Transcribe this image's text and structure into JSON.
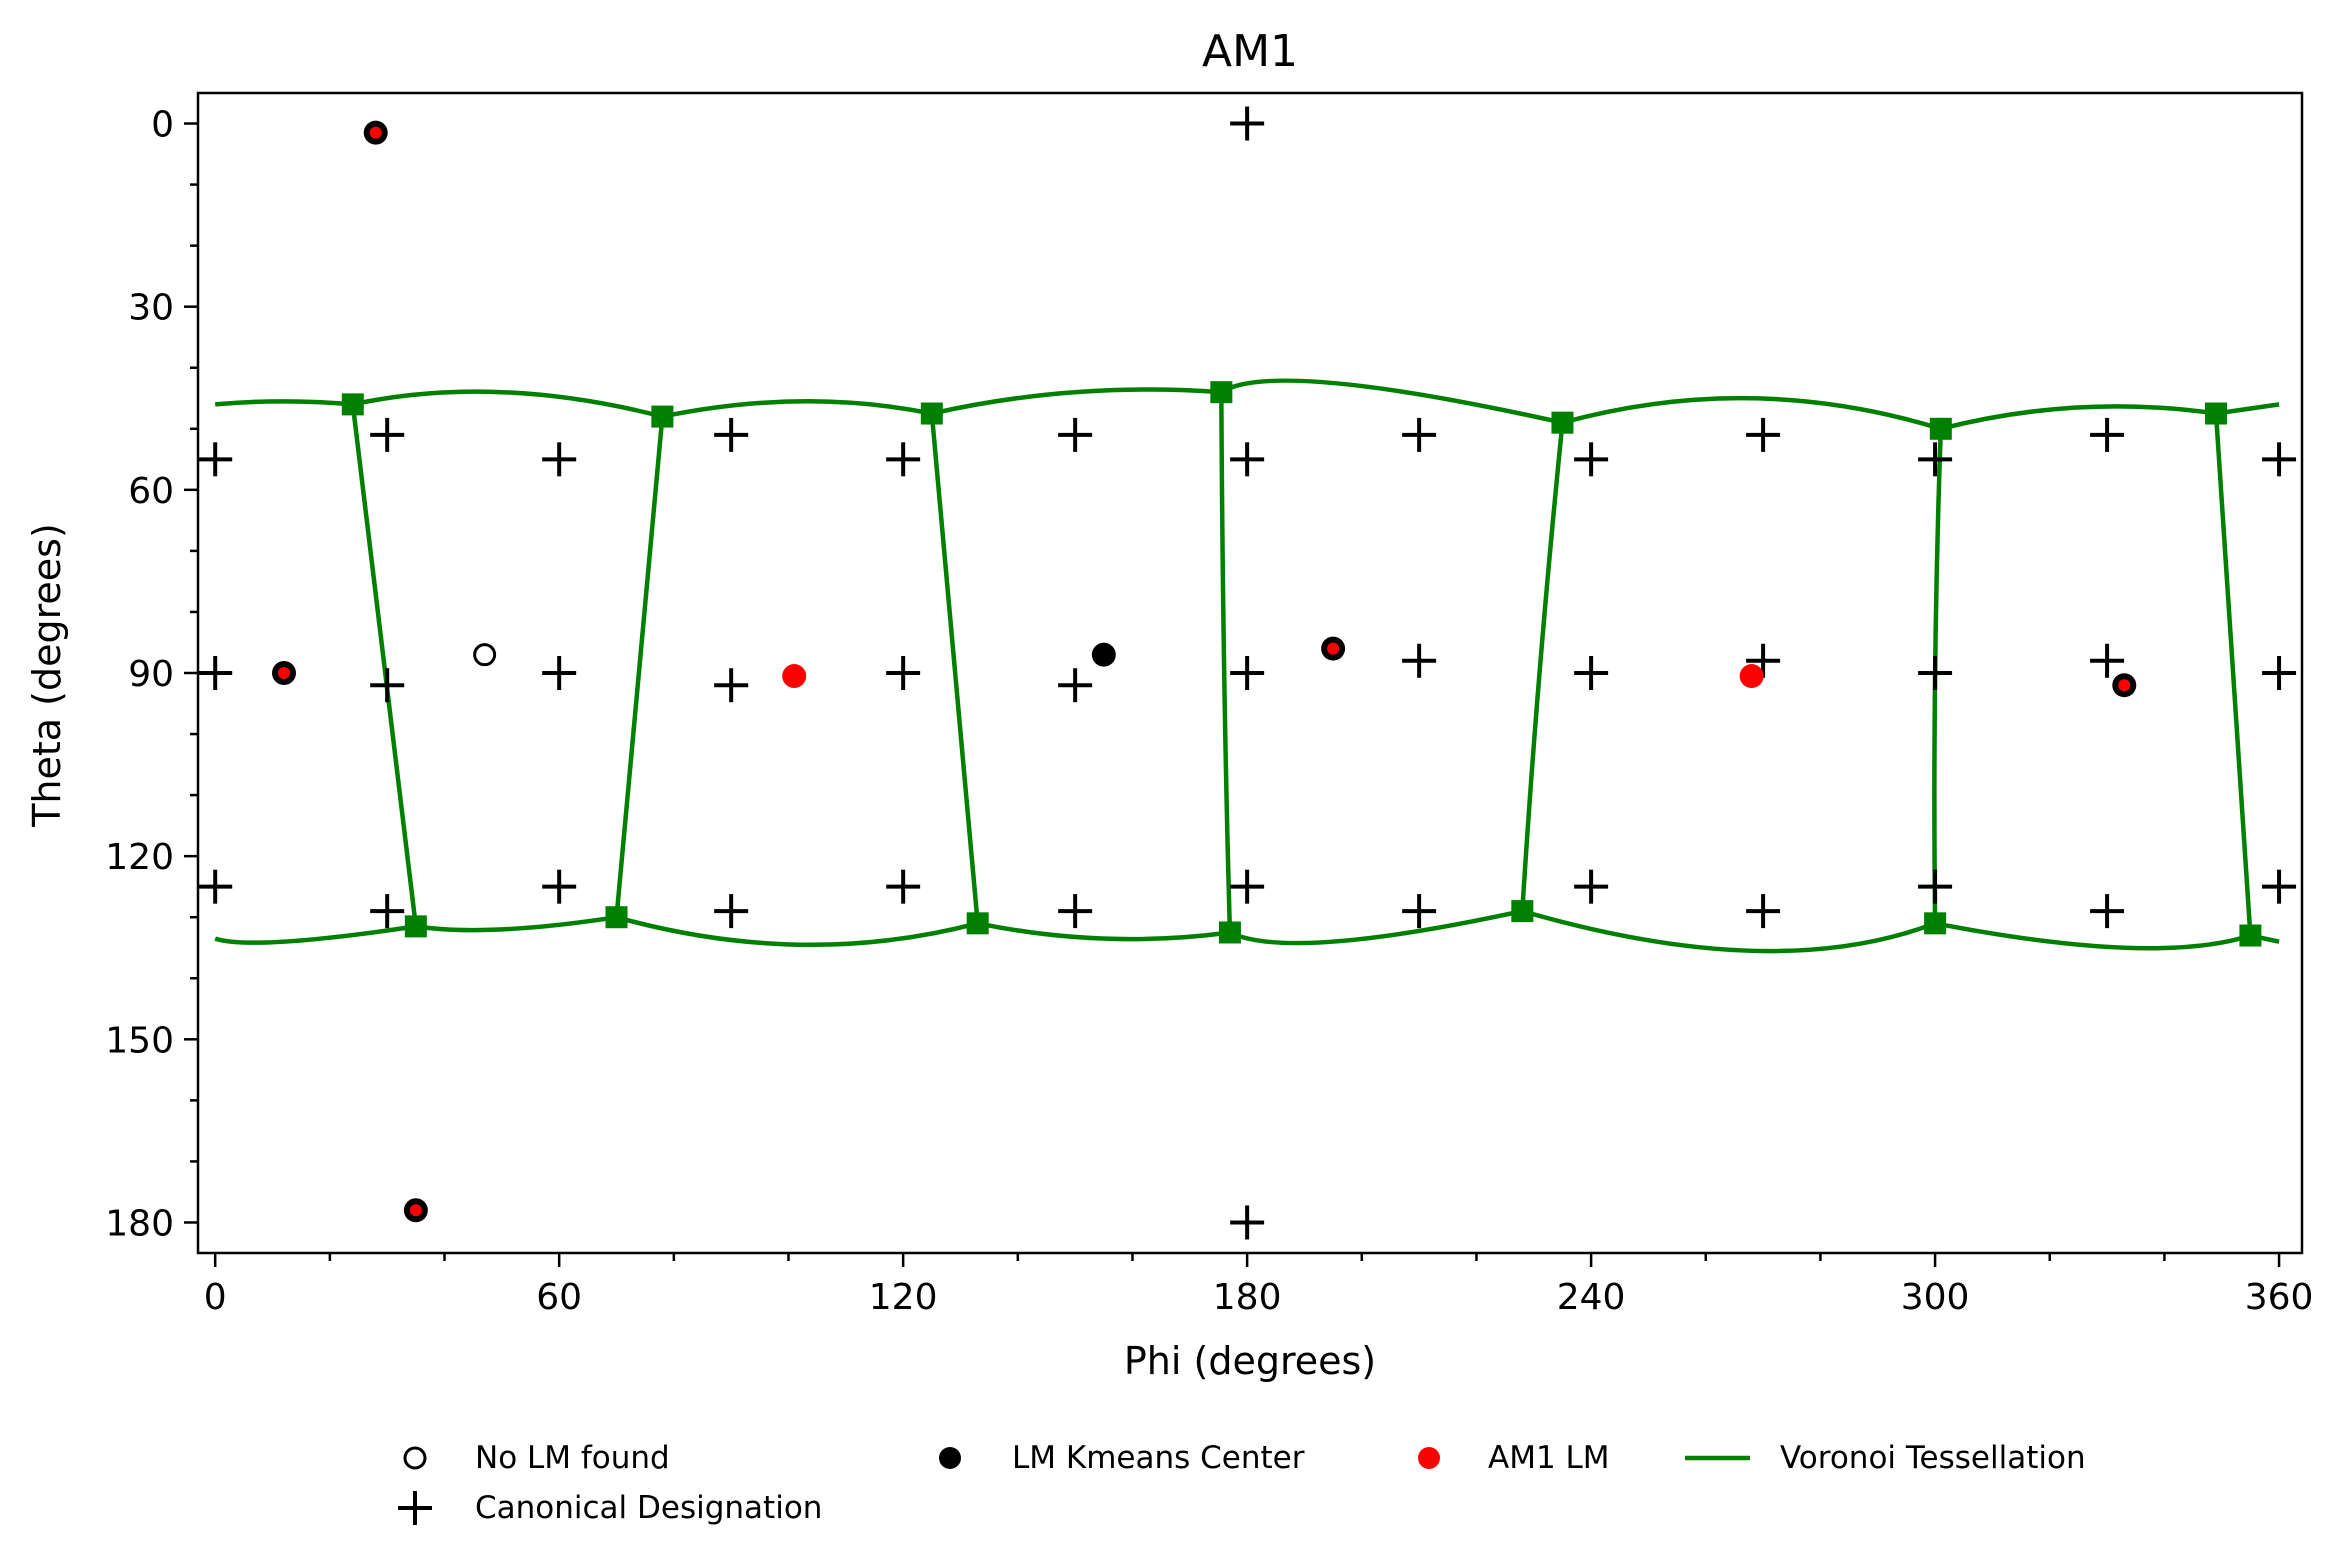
{
  "chart_data": {
    "type": "scatter",
    "title": "AM1",
    "xlabel": "Phi (degrees)",
    "ylabel": "Theta (degrees)",
    "xlim": [
      -3,
      364
    ],
    "ylim": [
      185,
      -5
    ],
    "y_inverted": true,
    "xticks": [
      0,
      60,
      120,
      180,
      240,
      300,
      360
    ],
    "yticks": [
      0,
      30,
      60,
      90,
      120,
      150,
      180
    ],
    "xminor_step": 20,
    "yminor_step": 10,
    "grid": false,
    "legend_placement": "bottom-center",
    "colors": {
      "voronoi": "#008000",
      "am1_lm": "#ff0000",
      "kmeans": "#000000",
      "canonical": "#000000"
    },
    "canonical_designations": [
      [
        180,
        0
      ],
      [
        0,
        55
      ],
      [
        30,
        51
      ],
      [
        60,
        55
      ],
      [
        90,
        51
      ],
      [
        120,
        55
      ],
      [
        150,
        51
      ],
      [
        180,
        55
      ],
      [
        210,
        51
      ],
      [
        240,
        55
      ],
      [
        270,
        51
      ],
      [
        300,
        55
      ],
      [
        330,
        51
      ],
      [
        360,
        55
      ],
      [
        0,
        90
      ],
      [
        30,
        92
      ],
      [
        60,
        90
      ],
      [
        90,
        92
      ],
      [
        120,
        90
      ],
      [
        150,
        92
      ],
      [
        180,
        90
      ],
      [
        210,
        88
      ],
      [
        240,
        90
      ],
      [
        270,
        88
      ],
      [
        300,
        90
      ],
      [
        330,
        88
      ],
      [
        360,
        90
      ],
      [
        0,
        125
      ],
      [
        30,
        129
      ],
      [
        60,
        125
      ],
      [
        90,
        129
      ],
      [
        120,
        125
      ],
      [
        150,
        129
      ],
      [
        180,
        125
      ],
      [
        210,
        129
      ],
      [
        240,
        125
      ],
      [
        270,
        129
      ],
      [
        300,
        125
      ],
      [
        330,
        129
      ],
      [
        360,
        125
      ],
      [
        180,
        180
      ]
    ],
    "no_lm_found": [
      [
        47,
        87
      ]
    ],
    "lm_kmeans_centers": [
      [
        28,
        1.5
      ],
      [
        12,
        90
      ],
      [
        155,
        87
      ],
      [
        195,
        86
      ],
      [
        333,
        92
      ],
      [
        35,
        178
      ]
    ],
    "am1_lm": [
      [
        28,
        1.5
      ],
      [
        12,
        90
      ],
      [
        101,
        90.5
      ],
      [
        195,
        86
      ],
      [
        268,
        90.5
      ],
      [
        333,
        92
      ],
      [
        35,
        178
      ]
    ],
    "voronoi_vertices": [
      [
        24,
        46
      ],
      [
        78,
        48
      ],
      [
        125,
        47.5
      ],
      [
        175.5,
        44
      ],
      [
        235,
        49
      ],
      [
        301,
        50
      ],
      [
        349,
        47.5
      ],
      [
        35,
        131.5
      ],
      [
        70,
        130
      ],
      [
        133,
        131
      ],
      [
        177,
        132.5
      ],
      [
        228,
        129
      ],
      [
        300,
        131
      ],
      [
        355,
        133
      ]
    ],
    "voronoi_edges": [
      [
        [
          0,
          46
        ],
        [
          12,
          45.5
        ],
        [
          24,
          46
        ]
      ],
      [
        [
          24,
          46
        ],
        [
          50,
          44
        ],
        [
          78,
          48
        ]
      ],
      [
        [
          78,
          48
        ],
        [
          102,
          45.5
        ],
        [
          125,
          47.5
        ]
      ],
      [
        [
          125,
          47.5
        ],
        [
          150,
          44
        ],
        [
          175.5,
          44
        ]
      ],
      [
        [
          175.5,
          44
        ],
        [
          195,
          42.5
        ],
        [
          235,
          49
        ]
      ],
      [
        [
          235,
          49
        ],
        [
          268,
          45
        ],
        [
          301,
          50
        ]
      ],
      [
        [
          301,
          50
        ],
        [
          325,
          46.5
        ],
        [
          349,
          47.5
        ]
      ],
      [
        [
          349,
          47.5
        ],
        [
          360,
          46
        ]
      ],
      [
        [
          0,
          133.5
        ],
        [
          12,
          134
        ],
        [
          35,
          131.5
        ]
      ],
      [
        [
          35,
          131.5
        ],
        [
          50,
          132
        ],
        [
          70,
          130
        ]
      ],
      [
        [
          70,
          130
        ],
        [
          102,
          134.5
        ],
        [
          133,
          131
        ]
      ],
      [
        [
          133,
          131
        ],
        [
          155,
          133.5
        ],
        [
          177,
          132.5
        ]
      ],
      [
        [
          177,
          132.5
        ],
        [
          195,
          134
        ],
        [
          228,
          129
        ]
      ],
      [
        [
          228,
          129
        ],
        [
          268,
          135.5
        ],
        [
          300,
          131
        ]
      ],
      [
        [
          300,
          131
        ],
        [
          333,
          135
        ],
        [
          355,
          133
        ]
      ],
      [
        [
          355,
          133
        ],
        [
          360,
          134
        ]
      ],
      [
        [
          24,
          46
        ],
        [
          29,
          85
        ],
        [
          35,
          131.5
        ]
      ],
      [
        [
          78,
          48
        ],
        [
          74,
          90
        ],
        [
          70,
          130
        ]
      ],
      [
        [
          125,
          47.5
        ],
        [
          129,
          90
        ],
        [
          133,
          131
        ]
      ],
      [
        [
          175.5,
          44
        ],
        [
          176,
          90
        ],
        [
          177,
          132.5
        ]
      ],
      [
        [
          235,
          49
        ],
        [
          231,
          90
        ],
        [
          228,
          129
        ]
      ],
      [
        [
          301,
          50
        ],
        [
          300,
          90
        ],
        [
          300,
          131
        ]
      ],
      [
        [
          349,
          47.5
        ],
        [
          352,
          90
        ],
        [
          355,
          133
        ]
      ]
    ]
  },
  "legend": {
    "no_lm": "No LM found",
    "kmeans": "LM Kmeans Center",
    "am1": "AM1 LM",
    "voronoi": "Voronoi Tessellation",
    "canonical": "Canonical Designation"
  }
}
